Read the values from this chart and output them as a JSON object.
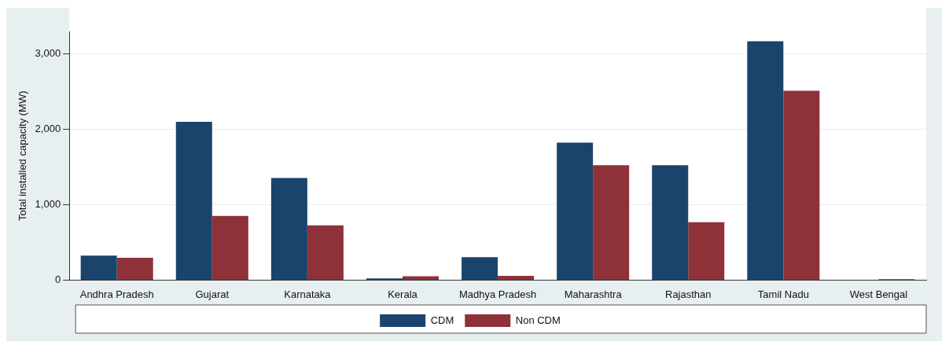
{
  "chart_data": {
    "type": "bar",
    "ylabel": "Total installed capacity (MW)",
    "categories": [
      "Andhra Pradesh",
      "Gujarat",
      "Karnataka",
      "Kerala",
      "Madhya Pradesh",
      "Maharashtra",
      "Rajasthan",
      "Tamil Nadu",
      "West Bengal"
    ],
    "series": [
      {
        "name": "CDM",
        "color": "#1a446c",
        "values": [
          326,
          2100,
          1356,
          22,
          303,
          1824,
          1524,
          3169,
          0
        ]
      },
      {
        "name": "Non CDM",
        "color": "#8e3139",
        "values": [
          296,
          852,
          726,
          52,
          56,
          1524,
          768,
          2513,
          11
        ]
      }
    ],
    "ylim": [
      0,
      3300
    ],
    "yticks": [
      0,
      {
        "value": 1000,
        "label": "1,000"
      },
      {
        "value": 2000,
        "label": "2,000"
      },
      {
        "value": 3000,
        "label": "3,000"
      }
    ],
    "grid": "y",
    "legend": "bottom"
  }
}
